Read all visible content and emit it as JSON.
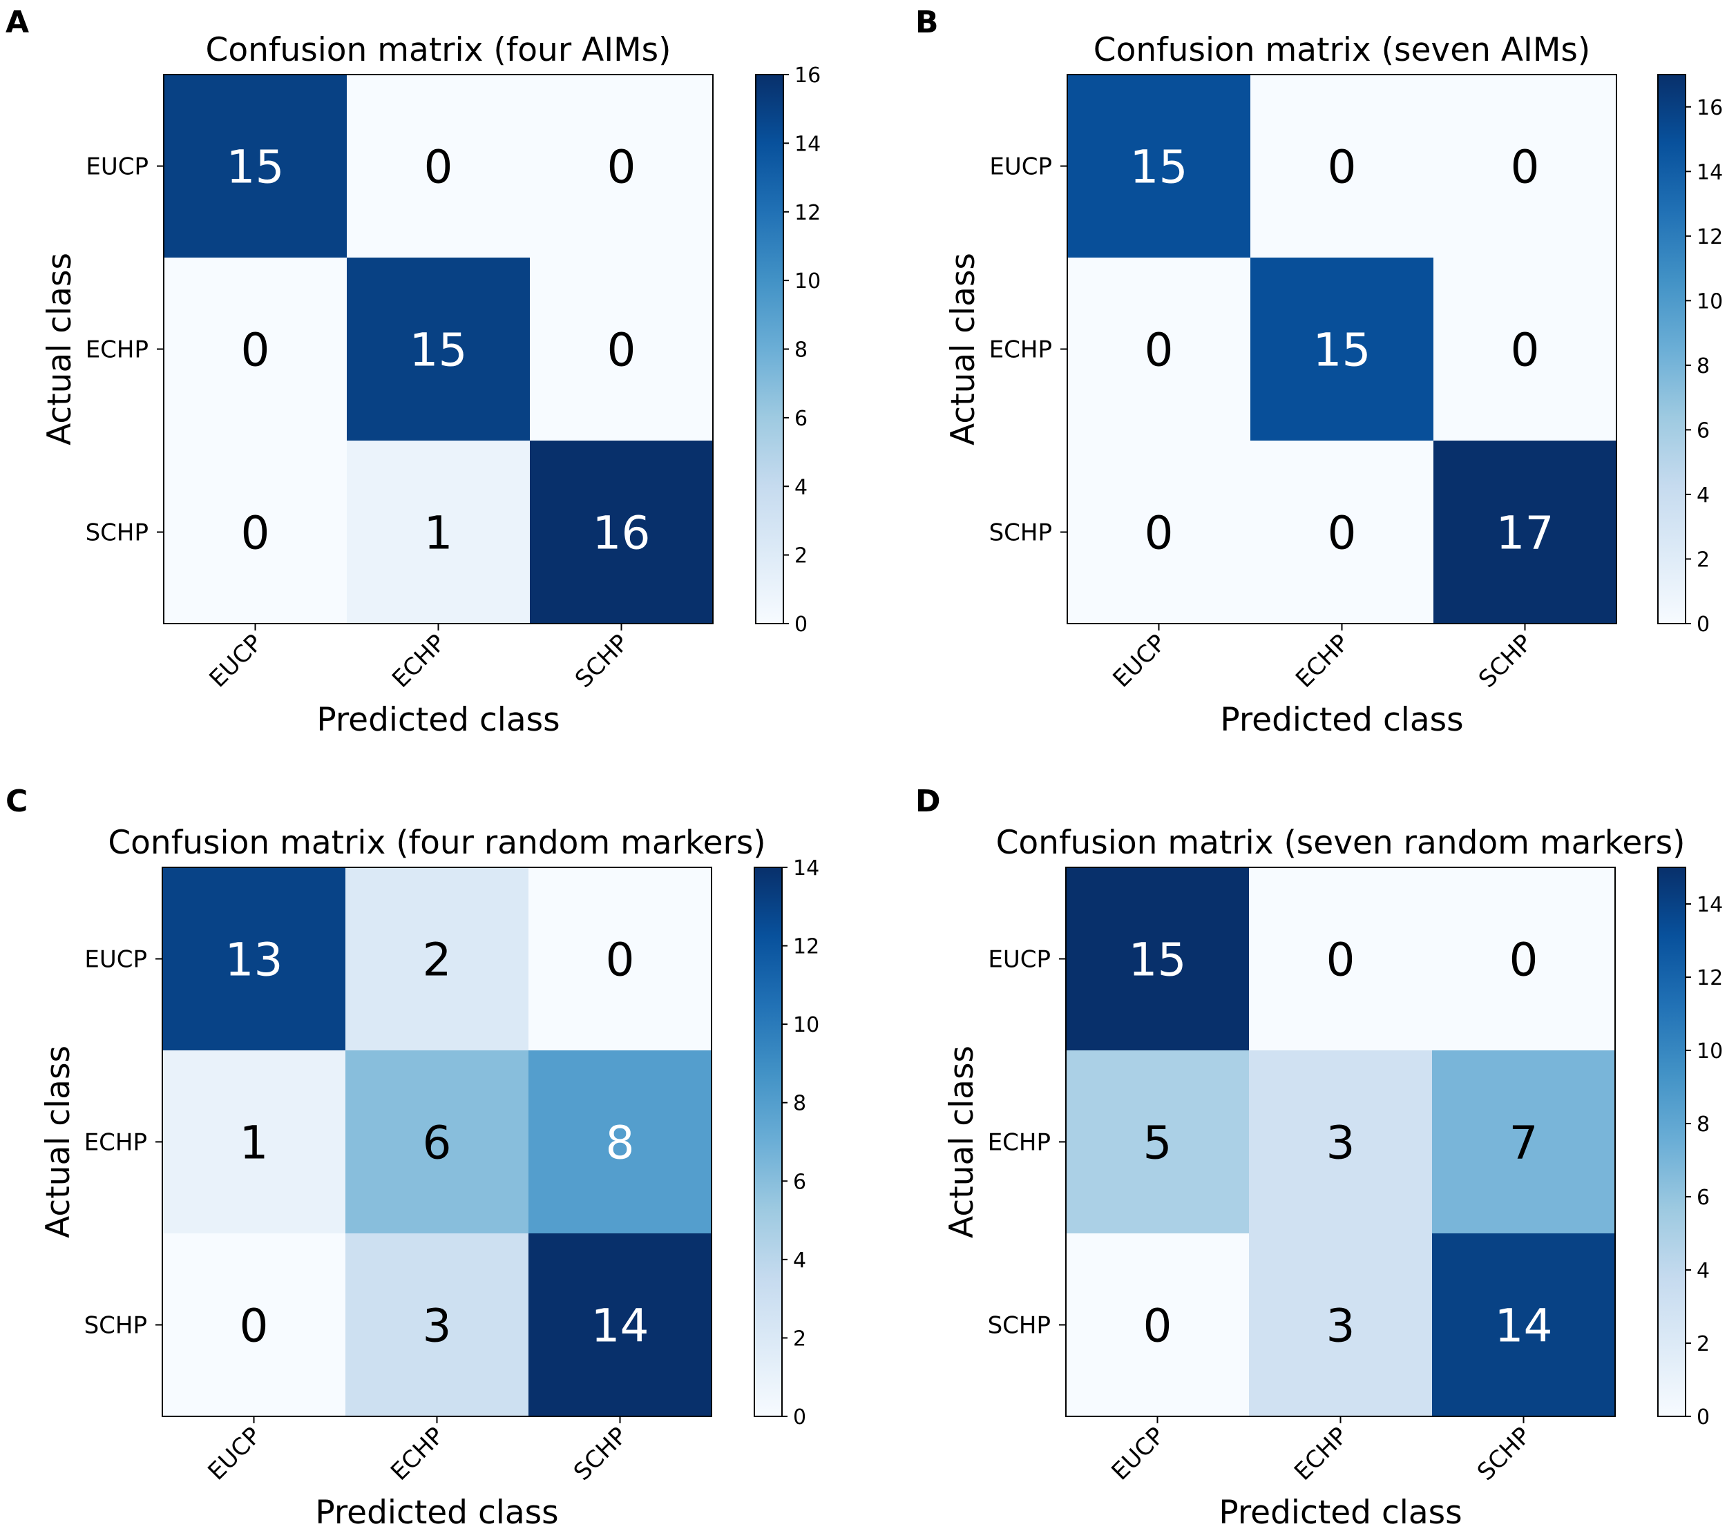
{
  "chart_data": [
    {
      "type": "heatmap",
      "panel_label": "A",
      "title": "Confusion matrix (four AIMs)",
      "xlabel": "Predicted class",
      "ylabel": "Actual class",
      "x_categories": [
        "EUCP",
        "ECHP",
        "SCHP"
      ],
      "y_categories": [
        "EUCP",
        "ECHP",
        "SCHP"
      ],
      "values": [
        [
          15,
          0,
          0
        ],
        [
          0,
          15,
          0
        ],
        [
          0,
          1,
          16
        ]
      ],
      "colorbar_range": [
        0,
        16
      ],
      "colorbar_ticks": [
        0,
        2,
        4,
        6,
        8,
        10,
        12,
        14,
        16
      ],
      "colormap": "Blues"
    },
    {
      "type": "heatmap",
      "panel_label": "B",
      "title": "Confusion matrix (seven AIMs)",
      "xlabel": "Predicted class",
      "ylabel": "Actual class",
      "x_categories": [
        "EUCP",
        "ECHP",
        "SCHP"
      ],
      "y_categories": [
        "EUCP",
        "ECHP",
        "SCHP"
      ],
      "values": [
        [
          15,
          0,
          0
        ],
        [
          0,
          15,
          0
        ],
        [
          0,
          0,
          17
        ]
      ],
      "colorbar_range": [
        0,
        17
      ],
      "colorbar_ticks": [
        0,
        2,
        4,
        6,
        8,
        10,
        12,
        14,
        16
      ],
      "colormap": "Blues"
    },
    {
      "type": "heatmap",
      "panel_label": "C",
      "title": "Confusion matrix (four random markers)",
      "xlabel": "Predicted class",
      "ylabel": "Actual class",
      "x_categories": [
        "EUCP",
        "ECHP",
        "SCHP"
      ],
      "y_categories": [
        "EUCP",
        "ECHP",
        "SCHP"
      ],
      "values": [
        [
          13,
          2,
          0
        ],
        [
          1,
          6,
          8
        ],
        [
          0,
          3,
          14
        ]
      ],
      "colorbar_range": [
        0,
        14
      ],
      "colorbar_ticks": [
        0,
        2,
        4,
        6,
        8,
        10,
        12,
        14
      ],
      "colormap": "Blues"
    },
    {
      "type": "heatmap",
      "panel_label": "D",
      "title": "Confusion matrix (seven random markers)",
      "xlabel": "Predicted class",
      "ylabel": "Actual class",
      "x_categories": [
        "EUCP",
        "ECHP",
        "SCHP"
      ],
      "y_categories": [
        "EUCP",
        "ECHP",
        "SCHP"
      ],
      "values": [
        [
          15,
          0,
          0
        ],
        [
          5,
          3,
          7
        ],
        [
          0,
          3,
          14
        ]
      ],
      "colorbar_range": [
        0,
        15
      ],
      "colorbar_ticks": [
        0,
        2,
        4,
        6,
        8,
        10,
        12,
        14
      ],
      "colormap": "Blues"
    }
  ]
}
